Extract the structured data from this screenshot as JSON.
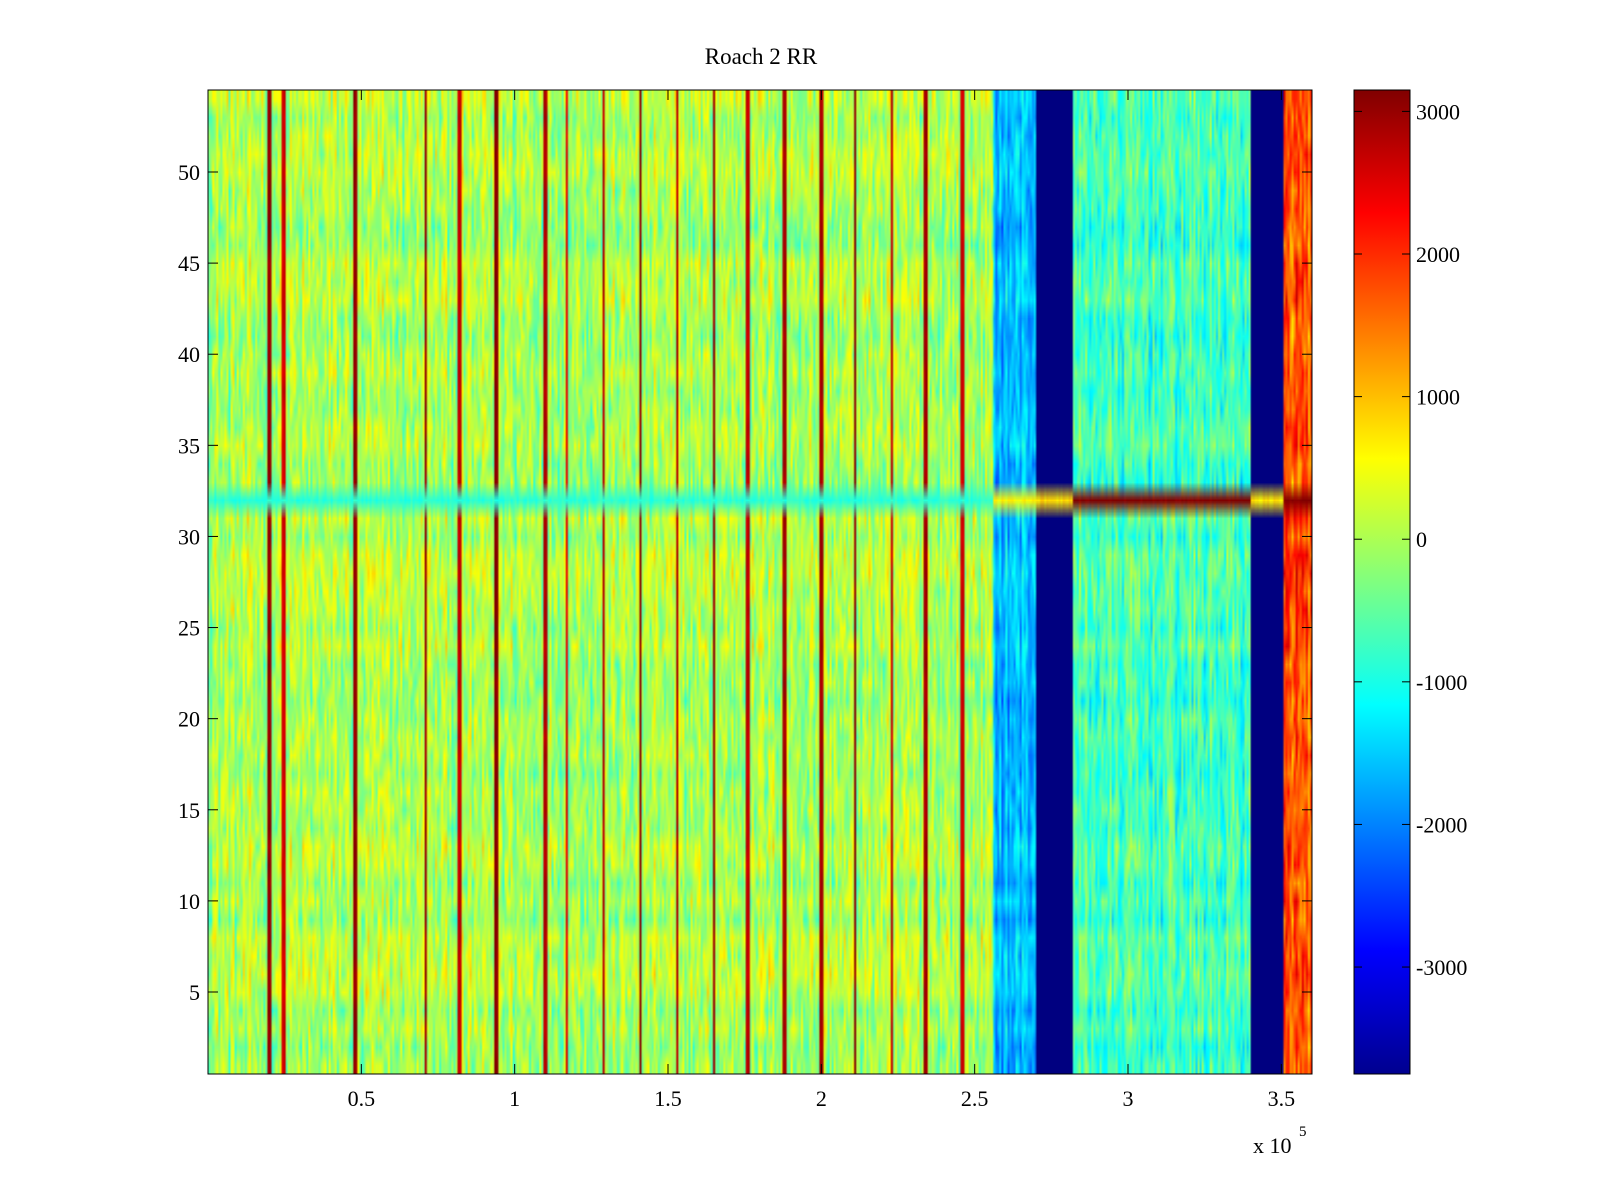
{
  "chart_data": {
    "type": "heatmap",
    "title": "Roach 2 RR",
    "xlabel": "",
    "ylabel": "",
    "x_multiplier_label": "x 10",
    "x_multiplier_exponent": "5",
    "xlim": [
      0,
      360000
    ],
    "ylim": [
      0.5,
      54.5
    ],
    "x_scale": 100000,
    "x_ticks": [
      0.5,
      1,
      1.5,
      2,
      2.5,
      3,
      3.5
    ],
    "x_tick_labels": [
      "0.5",
      "1",
      "1.5",
      "2",
      "2.5",
      "3",
      "3.5"
    ],
    "y_ticks": [
      5,
      10,
      15,
      20,
      25,
      30,
      35,
      40,
      45,
      50
    ],
    "y_tick_labels": [
      "5",
      "10",
      "15",
      "20",
      "25",
      "30",
      "35",
      "40",
      "45",
      "50"
    ],
    "rows": 54,
    "colorbar": {
      "colormap": "jet",
      "clim": [
        -3750,
        3150
      ],
      "ticks": [
        -3000,
        -2000,
        -1000,
        0,
        1000,
        2000,
        3000
      ],
      "tick_labels": [
        "-3000",
        "-2000",
        "-1000",
        "0",
        "1000",
        "2000",
        "3000"
      ]
    },
    "regions": [
      {
        "x_range": [
          0,
          256000
        ],
        "typical_value": 0,
        "spread": 650
      },
      {
        "x_range": [
          256000,
          270000
        ],
        "typical_value": -1600,
        "spread": 500
      },
      {
        "x_range": [
          270000,
          282000
        ],
        "typical_value": -3750,
        "spread": 0
      },
      {
        "x_range": [
          282000,
          340000
        ],
        "typical_value": -700,
        "spread": 650
      },
      {
        "x_range": [
          340000,
          351000
        ],
        "typical_value": -3750,
        "spread": 0
      },
      {
        "x_range": [
          351000,
          360000
        ],
        "typical_value": 1700,
        "spread": 700
      }
    ],
    "stripes": [
      {
        "x": 19800,
        "value": 3000
      },
      {
        "x": 24500,
        "value": 2600
      },
      {
        "x": 48000,
        "value": 3000
      },
      {
        "x": 71000,
        "value": 3000
      },
      {
        "x": 82000,
        "value": 2700
      },
      {
        "x": 94000,
        "value": 3100
      },
      {
        "x": 110000,
        "value": 2800
      },
      {
        "x": 117000,
        "value": 2500
      },
      {
        "x": 129000,
        "value": 2800
      },
      {
        "x": 141000,
        "value": 3100
      },
      {
        "x": 153000,
        "value": 2800
      },
      {
        "x": 165000,
        "value": 3000
      },
      {
        "x": 176000,
        "value": 2700
      },
      {
        "x": 188000,
        "value": 2900
      },
      {
        "x": 200000,
        "value": 2900
      },
      {
        "x": 211000,
        "value": 3100
      },
      {
        "x": 223000,
        "value": 2700
      },
      {
        "x": 234000,
        "value": 2900
      },
      {
        "x": 246000,
        "value": 2600
      }
    ],
    "anomaly_row": {
      "row": 32,
      "segments": [
        {
          "x_range": [
            0,
            256000
          ],
          "value": -900
        },
        {
          "x_range": [
            256000,
            270000
          ],
          "value": 600
        },
        {
          "x_range": [
            270000,
            282000
          ],
          "value": 800
        },
        {
          "x_range": [
            282000,
            340000
          ],
          "value": 3150
        },
        {
          "x_range": [
            340000,
            351000
          ],
          "value": 700
        },
        {
          "x_range": [
            351000,
            360000
          ],
          "value": 3150
        }
      ]
    }
  }
}
